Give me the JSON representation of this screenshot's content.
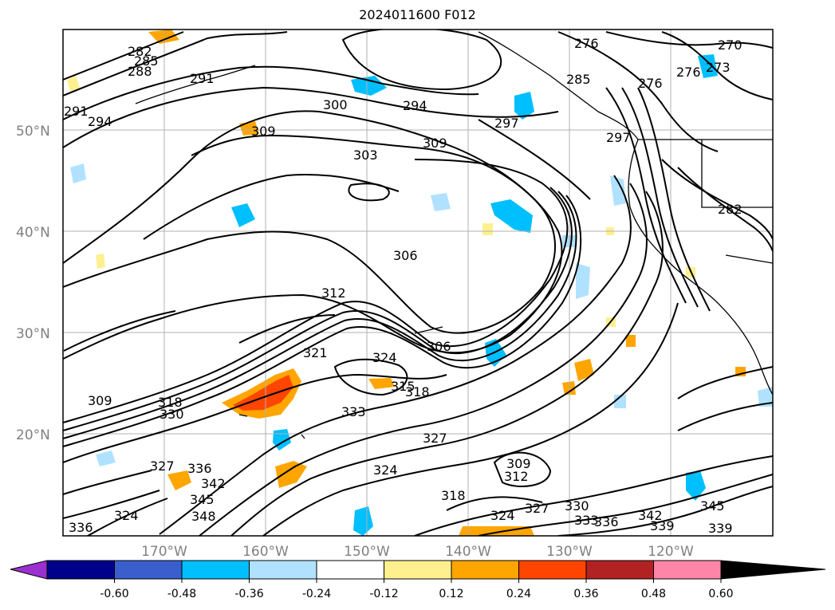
{
  "title": "2024011600 F012",
  "latitude_labels": [
    "50°N",
    "40°N",
    "30°N",
    "20°N"
  ],
  "longitude_labels": [
    "170°W",
    "160°W",
    "150°W",
    "140°W",
    "130°W",
    "120°W"
  ],
  "contour_labels": [
    "282",
    "285",
    "288",
    "291",
    "291",
    "294",
    "300",
    "294",
    "297",
    "309",
    "303",
    "309",
    "306",
    "312",
    "321",
    "324",
    "315",
    "318",
    "309",
    "318",
    "330",
    "333",
    "327",
    "324",
    "327",
    "336",
    "342",
    "345",
    "348",
    "324",
    "336",
    "309",
    "312",
    "318",
    "324",
    "327",
    "330",
    "333",
    "336",
    "342",
    "339",
    "345",
    "339",
    "276",
    "270",
    "273",
    "276",
    "276",
    "285",
    "297",
    "282",
    "306"
  ],
  "colorbar": {
    "tick_labels": [
      "-0.60",
      "-0.48",
      "-0.36",
      "-0.24",
      "-0.12",
      "0.12",
      "0.24",
      "0.36",
      "0.48",
      "0.60"
    ],
    "colors": [
      "#9b30d0",
      "#00008b",
      "#3a5fcd",
      "#00bfff",
      "#b0e2ff",
      "#ffffff",
      "#fff08f",
      "#ffa500",
      "#ff4500",
      "#b22222",
      "#ff85a8"
    ]
  }
}
